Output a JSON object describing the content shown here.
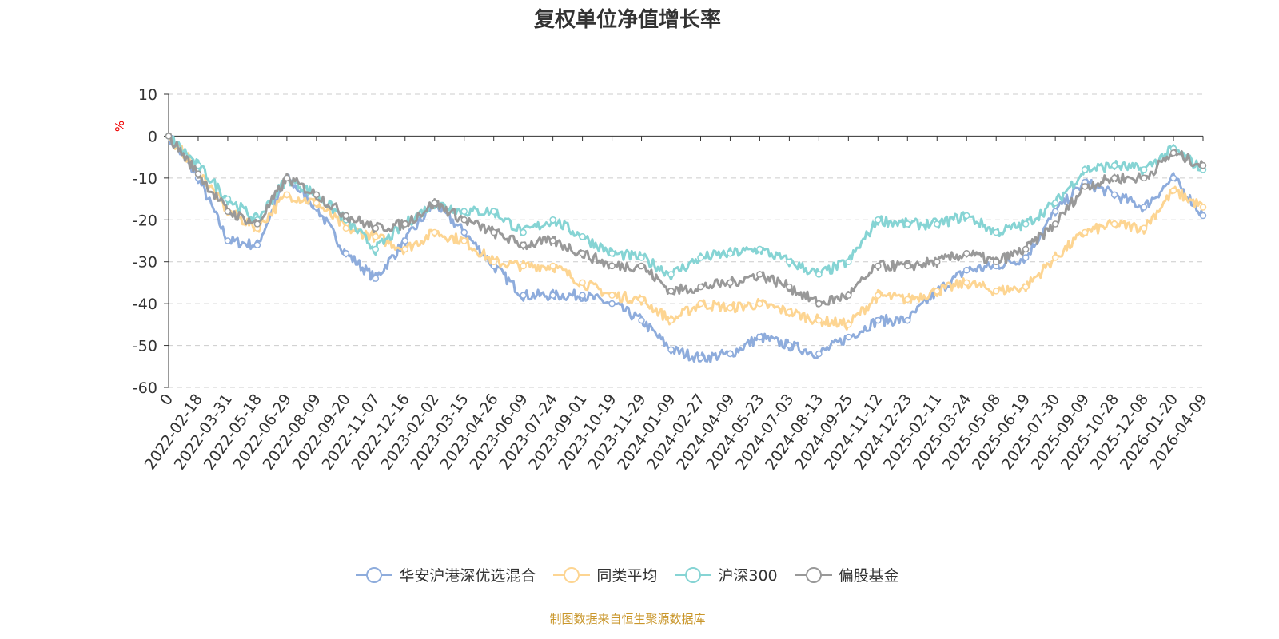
{
  "title": "复权单位净值增长率",
  "source": "制图数据来自恒生聚源数据库",
  "chart_data": {
    "type": "line",
    "title": "复权单位净值增长率",
    "ylabel": "%",
    "xlabel": "",
    "ylim": [
      -60,
      10
    ],
    "yticks": [
      10,
      0,
      -10,
      -20,
      -30,
      -40,
      -50,
      -60
    ],
    "grid": true,
    "legend_position": "bottom",
    "categories": [
      "0",
      "2022-02-18",
      "2022-03-31",
      "2022-05-18",
      "2022-06-29",
      "2022-08-09",
      "2022-09-20",
      "2022-11-07",
      "2022-12-16",
      "2023-02-02",
      "2023-03-15",
      "2023-04-26",
      "2023-06-09",
      "2023-07-24",
      "2023-09-01",
      "2023-10-19",
      "2023-11-29",
      "2024-01-09",
      "2024-02-27",
      "2024-04-09",
      "2024-05-23",
      "2024-07-03",
      "2024-08-13",
      "2024-09-25",
      "2024-11-12",
      "2024-12-23",
      "2025-02-11",
      "2025-03-24",
      "2025-05-08",
      "2025-06-19",
      "2025-07-30",
      "2025-09-09",
      "2025-10-28",
      "2025-12-08",
      "2026-01-20",
      "2026-04-09"
    ],
    "series": [
      {
        "name": "华安沪港深优选混合",
        "color": "#8eacdc",
        "values": [
          0,
          -10,
          -25,
          -26,
          -10,
          -17,
          -28,
          -34,
          -25,
          -16,
          -23,
          -31,
          -38,
          -38,
          -38,
          -40,
          -44,
          -51,
          -53,
          -52,
          -48,
          -50,
          -52,
          -48,
          -44,
          -44,
          -37,
          -32,
          -31,
          -29,
          -18,
          -11,
          -14,
          -17,
          -10,
          -19
        ]
      },
      {
        "name": "同类平均",
        "color": "#fdd592",
        "values": [
          0,
          -8,
          -18,
          -22,
          -14,
          -16,
          -22,
          -24,
          -27,
          -23,
          -25,
          -30,
          -31,
          -31,
          -35,
          -38,
          -39,
          -44,
          -40,
          -41,
          -40,
          -42,
          -44,
          -45,
          -38,
          -39,
          -37,
          -35,
          -37,
          -36,
          -29,
          -23,
          -21,
          -22,
          -13,
          -17
        ]
      },
      {
        "name": "沪深300",
        "color": "#86d4d4",
        "values": [
          0,
          -7,
          -15,
          -20,
          -10,
          -14,
          -20,
          -27,
          -21,
          -16,
          -18,
          -18,
          -23,
          -20,
          -24,
          -28,
          -29,
          -33,
          -29,
          -28,
          -27,
          -30,
          -33,
          -30,
          -20,
          -21,
          -21,
          -19,
          -23,
          -21,
          -16,
          -8,
          -7,
          -8,
          -3,
          -8
        ]
      },
      {
        "name": "偏股基金",
        "color": "#999999",
        "values": [
          0,
          -9,
          -18,
          -21,
          -10,
          -14,
          -19,
          -22,
          -21,
          -16,
          -20,
          -23,
          -26,
          -25,
          -28,
          -31,
          -31,
          -37,
          -36,
          -35,
          -33,
          -36,
          -40,
          -38,
          -31,
          -31,
          -30,
          -28,
          -30,
          -27,
          -21,
          -12,
          -10,
          -10,
          -4,
          -7
        ]
      }
    ]
  }
}
